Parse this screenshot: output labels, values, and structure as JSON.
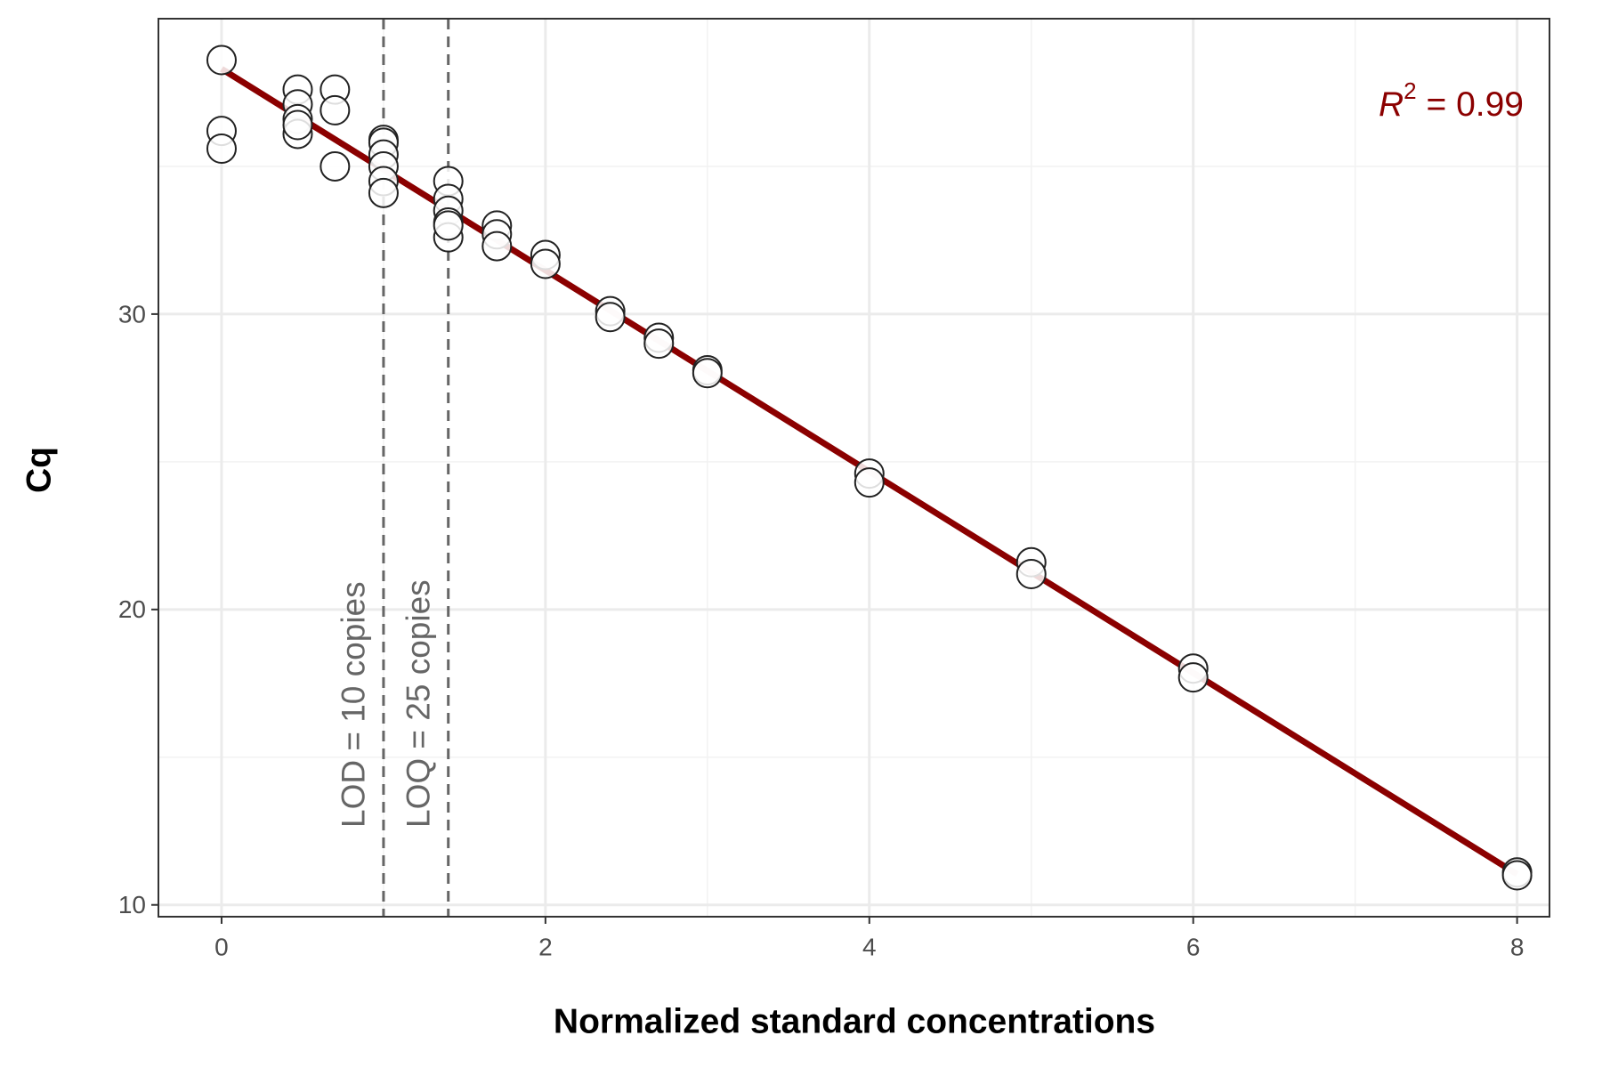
{
  "chart_data": {
    "type": "scatter",
    "x_label": "Normalized standard concentrations",
    "y_label": "Cq",
    "x": [
      0,
      0,
      0,
      0.47,
      0.47,
      0.47,
      0.47,
      0.47,
      0.7,
      0.7,
      0.7,
      1.0,
      1.0,
      1.0,
      1.0,
      1.0,
      1.0,
      1.4,
      1.4,
      1.4,
      1.4,
      1.4,
      1.4,
      1.7,
      1.7,
      1.7,
      2.0,
      2.0,
      2.4,
      2.4,
      2.7,
      2.7,
      3.0,
      3.0,
      4,
      4,
      5,
      5,
      6,
      6,
      8,
      8
    ],
    "values": [
      38.6,
      36.2,
      35.6,
      37.6,
      37.1,
      36.6,
      36.1,
      36.4,
      37.6,
      36.9,
      35.0,
      35.9,
      35.8,
      35.4,
      35.0,
      34.5,
      34.1,
      34.5,
      33.9,
      33.5,
      33.1,
      32.6,
      33.0,
      33.0,
      32.7,
      32.3,
      32.0,
      31.7,
      30.1,
      29.9,
      29.2,
      29.0,
      28.1,
      28.0,
      24.6,
      24.3,
      21.6,
      21.2,
      18.0,
      17.7,
      11.1,
      11.0
    ],
    "point_color": "#ffffff",
    "point_edge_color": "#222222",
    "fit": {
      "x": [
        0,
        8
      ],
      "y": [
        38.3,
        11.04
      ],
      "color": "#8b0000"
    },
    "vlines": [
      {
        "x": 1.0,
        "label": "LOD = 10 copies"
      },
      {
        "x": 1.4,
        "label": "LOQ = 25 copies"
      }
    ],
    "r2_annotation": {
      "symbol": "R",
      "superscript": "2",
      "text": " = 0.99",
      "color": "#8b0000"
    },
    "xlim": [
      -0.39,
      8.2
    ],
    "ylim": [
      9.6,
      40
    ],
    "xticks": [
      0,
      2,
      4,
      6,
      8
    ],
    "yticks": [
      10,
      20,
      30
    ],
    "x_minor_grid": [
      1,
      3,
      5,
      7
    ],
    "y_minor_grid": [
      15,
      25,
      35
    ],
    "grid": true
  }
}
